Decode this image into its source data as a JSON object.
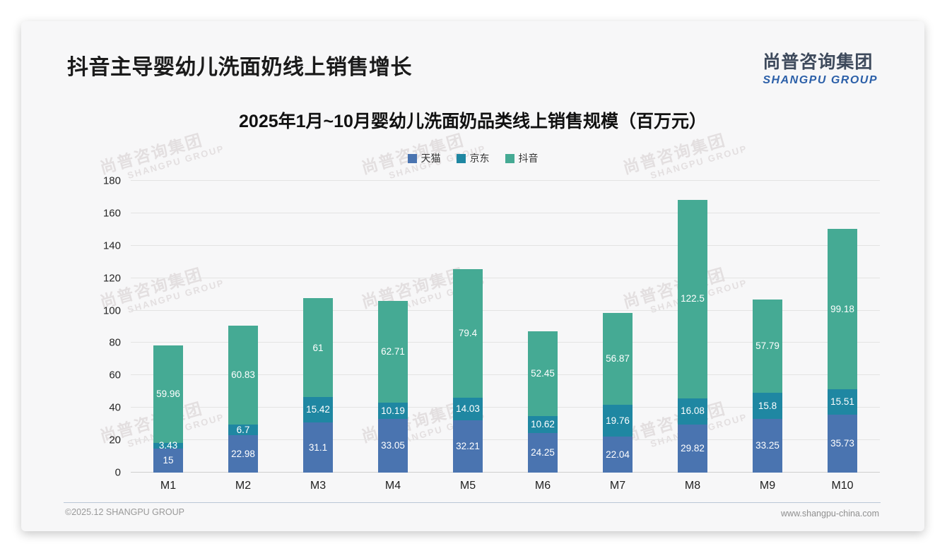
{
  "page": {
    "title": "抖音主导婴幼儿洗面奶线上销售增长",
    "logo": {
      "cn": "尚普咨询集团",
      "en": "SHANGPU GROUP"
    },
    "watermark": {
      "cn": "尚普咨询集团",
      "en": "SHANGPU GROUP"
    },
    "footer": {
      "left": "©2025.12 SHANGPU GROUP",
      "right": "www.shangpu-china.com"
    }
  },
  "chart_data": {
    "type": "bar",
    "stacked": true,
    "title": "2025年1月~10月婴幼儿洗面奶品类线上销售规模（百万元）",
    "categories": [
      "M1",
      "M2",
      "M3",
      "M4",
      "M5",
      "M6",
      "M7",
      "M8",
      "M9",
      "M10"
    ],
    "series": [
      {
        "name": "天猫",
        "color": "#4a74b0",
        "values": [
          15,
          22.98,
          31.1,
          33.05,
          32.21,
          24.25,
          22.04,
          29.82,
          33.25,
          35.73
        ]
      },
      {
        "name": "京东",
        "color": "#1f87a2",
        "values": [
          3.43,
          6.7,
          15.42,
          10.19,
          14.03,
          10.62,
          19.76,
          16.08,
          15.8,
          15.51
        ]
      },
      {
        "name": "抖音",
        "color": "#45aa94",
        "values": [
          59.96,
          60.83,
          61,
          62.71,
          79.4,
          52.45,
          56.87,
          122.5,
          57.79,
          99.18
        ]
      }
    ],
    "xlabel": "",
    "ylabel": "",
    "ylim": [
      0,
      180
    ],
    "yticks": [
      0,
      20,
      40,
      60,
      80,
      100,
      120,
      140,
      160,
      180
    ],
    "grid": true,
    "legend_position": "top",
    "value_labels": "inside-white"
  }
}
